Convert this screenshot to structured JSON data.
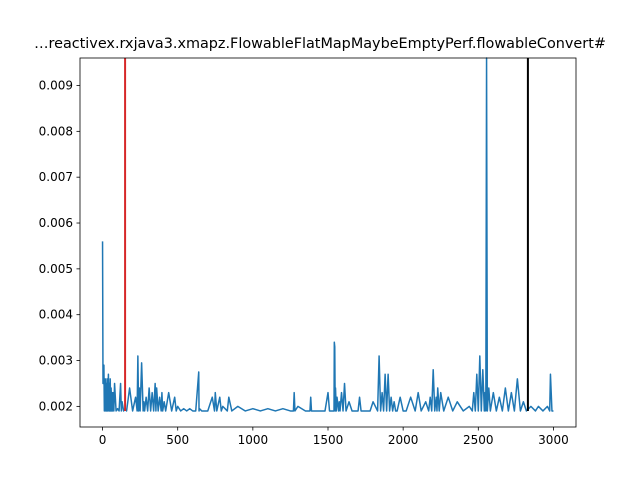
{
  "chart_data": {
    "type": "line",
    "title": "…reactivex.rxjava3.xmapz.FlowableFlatMapMaybeEmptyPerf.flowableConvert#",
    "xlabel": "",
    "ylabel": "",
    "xlim": [
      -150,
      3150
    ],
    "ylim": [
      0.00155,
      0.0096
    ],
    "xticks": [
      0,
      500,
      1000,
      1500,
      2000,
      2500,
      3000
    ],
    "xtick_labels": [
      "0",
      "500",
      "1000",
      "1500",
      "2000",
      "2500",
      "3000"
    ],
    "yticks": [
      0.002,
      0.003,
      0.004,
      0.005,
      0.006,
      0.007,
      0.008,
      0.009
    ],
    "ytick_labels": [
      "0.002",
      "0.003",
      "0.004",
      "0.005",
      "0.006",
      "0.007",
      "0.008",
      "0.009"
    ],
    "grid": false,
    "series": [
      {
        "color": "#1f77b4",
        "x": [
          0,
          3,
          6,
          9,
          12,
          15,
          18,
          21,
          24,
          27,
          30,
          33,
          36,
          39,
          42,
          45,
          48,
          51,
          54,
          57,
          60,
          63,
          66,
          70,
          75,
          80,
          90,
          100,
          110,
          120,
          125,
          130,
          140,
          150,
          160,
          180,
          200,
          220,
          230,
          235,
          240,
          245,
          250,
          260,
          270,
          275,
          280,
          290,
          300,
          310,
          320,
          330,
          340,
          350,
          355,
          360,
          370,
          380,
          390,
          395,
          400,
          410,
          420,
          440,
          460,
          480,
          490,
          500,
          520,
          540,
          560,
          580,
          600,
          620,
          640,
          642,
          645,
          660,
          700,
          730,
          745,
          750,
          760,
          780,
          790,
          800,
          830,
          840,
          860,
          900,
          950,
          1000,
          1050,
          1100,
          1150,
          1200,
          1250,
          1270,
          1275,
          1280,
          1300,
          1350,
          1380,
          1385,
          1390,
          1420,
          1480,
          1500,
          1510,
          1520,
          1540,
          1542,
          1545,
          1548,
          1550,
          1555,
          1560,
          1570,
          1575,
          1580,
          1590,
          1600,
          1610,
          1620,
          1640,
          1660,
          1680,
          1700,
          1710,
          1720,
          1740,
          1760,
          1780,
          1800,
          1830,
          1840,
          1850,
          1860,
          1870,
          1880,
          1890,
          1900,
          1910,
          1920,
          1930,
          1940,
          1950,
          1960,
          1980,
          2000,
          2020,
          2050,
          2080,
          2100,
          2120,
          2150,
          2170,
          2180,
          2190,
          2200,
          2210,
          2220,
          2225,
          2230,
          2240,
          2250,
          2270,
          2300,
          2330,
          2360,
          2400,
          2440,
          2460,
          2470,
          2480,
          2490,
          2500,
          2510,
          2520,
          2530,
          2540,
          2545,
          2550,
          2555,
          2560,
          2570,
          2580,
          2600,
          2620,
          2640,
          2660,
          2680,
          2700,
          2720,
          2740,
          2760,
          2780,
          2800,
          2820,
          2850,
          2880,
          2900,
          2930,
          2960,
          2975,
          2980,
          2990,
          3000
        ],
        "y": [
          0.0056,
          0.0025,
          0.0027,
          0.0029,
          0.0019,
          0.0023,
          0.0026,
          0.0019,
          0.0025,
          0.0019,
          0.0026,
          0.0019,
          0.0023,
          0.0027,
          0.0019,
          0.0025,
          0.0019,
          0.0026,
          0.0019,
          0.0024,
          0.0019,
          0.0023,
          0.0019,
          0.0023,
          0.0019,
          0.0025,
          0.0019,
          0.00195,
          0.0019,
          0.0025,
          0.0019,
          0.0021,
          0.0019,
          0.00195,
          0.0019,
          0.0024,
          0.0019,
          0.0022,
          0.0019,
          0.0031,
          0.0019,
          0.0024,
          0.0019,
          0.00295,
          0.0019,
          0.0021,
          0.0019,
          0.0022,
          0.0019,
          0.0024,
          0.0019,
          0.0023,
          0.0019,
          0.0025,
          0.0019,
          0.0024,
          0.0019,
          0.0022,
          0.0019,
          0.0023,
          0.0019,
          0.0021,
          0.0019,
          0.0023,
          0.0019,
          0.0022,
          0.0019,
          0.002,
          0.0019,
          0.00195,
          0.0019,
          0.00195,
          0.0019,
          0.0019,
          0.00275,
          0.0019,
          0.00195,
          0.0019,
          0.0019,
          0.0022,
          0.0019,
          0.0023,
          0.0019,
          0.0022,
          0.0019,
          0.002,
          0.0019,
          0.0022,
          0.0019,
          0.002,
          0.0019,
          0.00195,
          0.0019,
          0.00195,
          0.0019,
          0.00195,
          0.0019,
          0.0019,
          0.0023,
          0.0019,
          0.002,
          0.0019,
          0.0019,
          0.0022,
          0.0019,
          0.0019,
          0.0019,
          0.0023,
          0.0019,
          0.0019,
          0.0019,
          0.0034,
          0.0033,
          0.0019,
          0.0024,
          0.0019,
          0.0022,
          0.0019,
          0.0021,
          0.0019,
          0.0023,
          0.0019,
          0.0025,
          0.0019,
          0.0021,
          0.0019,
          0.0019,
          0.0019,
          0.0022,
          0.0019,
          0.0019,
          0.0019,
          0.0019,
          0.0021,
          0.0019,
          0.0031,
          0.0019,
          0.0023,
          0.0019,
          0.0027,
          0.0019,
          0.0027,
          0.0019,
          0.0022,
          0.0019,
          0.0021,
          0.0019,
          0.0019,
          0.0022,
          0.0019,
          0.0019,
          0.0022,
          0.0019,
          0.0023,
          0.0019,
          0.0021,
          0.0019,
          0.0022,
          0.0019,
          0.0028,
          0.0019,
          0.0022,
          0.0019,
          0.0024,
          0.0019,
          0.0023,
          0.0019,
          0.0022,
          0.0019,
          0.0021,
          0.0019,
          0.002,
          0.0019,
          0.0023,
          0.0019,
          0.0027,
          0.0019,
          0.0031,
          0.0019,
          0.0028,
          0.0019,
          0.0023,
          0.0019,
          0.0096,
          0.0019,
          0.0024,
          0.0019,
          0.0023,
          0.0019,
          0.0022,
          0.0019,
          0.0024,
          0.0019,
          0.0023,
          0.0019,
          0.0026,
          0.0019,
          0.0021,
          0.0019,
          0.002,
          0.0019,
          0.002,
          0.0019,
          0.002,
          0.0019,
          0.0027,
          0.0019,
          0.0019
        ]
      }
    ],
    "vlines": [
      {
        "x": 150,
        "ymin": 0.0019,
        "ymax": 0.0096,
        "color": "#d62728"
      },
      {
        "x": 2830,
        "ymin": 0.0019,
        "ymax": 0.0096,
        "color": "#000000"
      }
    ]
  }
}
